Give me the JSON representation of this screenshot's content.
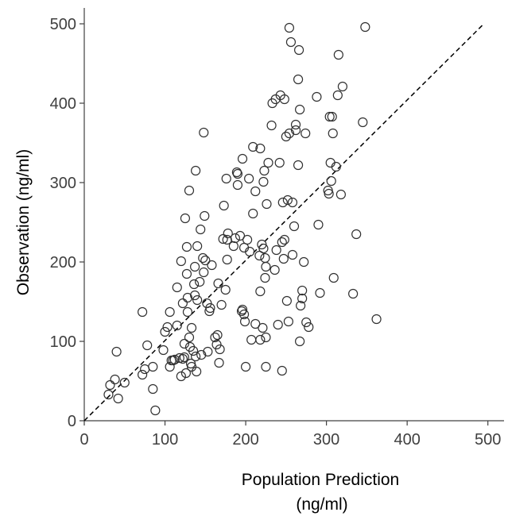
{
  "chart_data": {
    "type": "scatter",
    "xlabel_line1": "Population Prediction",
    "xlabel_line2": "(ng/ml)",
    "ylabel": "Observation (ng/ml)",
    "xlim": [
      0,
      520
    ],
    "ylim": [
      0,
      520
    ],
    "xticks": [
      0,
      100,
      200,
      300,
      400,
      500
    ],
    "yticks": [
      0,
      100,
      200,
      300,
      400,
      500
    ],
    "xtick_labels": [
      "0",
      "100",
      "200",
      "300",
      "400",
      "500"
    ],
    "ytick_labels": [
      "0",
      "100",
      "200",
      "300",
      "400",
      "500"
    ],
    "grid": false,
    "identity_line": {
      "style": "dashed",
      "from": [
        0,
        0
      ],
      "to": [
        495,
        500
      ]
    },
    "series": [
      {
        "marker": "open-circle",
        "color": "#303030",
        "points": [
          [
            30,
            33
          ],
          [
            32,
            45
          ],
          [
            38,
            52
          ],
          [
            42,
            28
          ],
          [
            40,
            87
          ],
          [
            50,
            48
          ],
          [
            72,
            58
          ],
          [
            75,
            65
          ],
          [
            72,
            137
          ],
          [
            78,
            95
          ],
          [
            85,
            40
          ],
          [
            85,
            68
          ],
          [
            88,
            13
          ],
          [
            98,
            89
          ],
          [
            100,
            112
          ],
          [
            103,
            118
          ],
          [
            106,
            68
          ],
          [
            106,
            137
          ],
          [
            108,
            76
          ],
          [
            110,
            76
          ],
          [
            112,
            77
          ],
          [
            115,
            120
          ],
          [
            115,
            168
          ],
          [
            118,
            79
          ],
          [
            120,
            56
          ],
          [
            122,
            78
          ],
          [
            124,
            80
          ],
          [
            126,
            60
          ],
          [
            124,
            97
          ],
          [
            120,
            201
          ],
          [
            122,
            148
          ],
          [
            125,
            255
          ],
          [
            127,
            219
          ],
          [
            127,
            185
          ],
          [
            128,
            155
          ],
          [
            128,
            137
          ],
          [
            130,
            290
          ],
          [
            130,
            105
          ],
          [
            131,
            93
          ],
          [
            132,
            72
          ],
          [
            133,
            68
          ],
          [
            133,
            117
          ],
          [
            135,
            88
          ],
          [
            137,
            158
          ],
          [
            136,
            172
          ],
          [
            137,
            194
          ],
          [
            138,
            81
          ],
          [
            139,
            62
          ],
          [
            138,
            315
          ],
          [
            140,
            220
          ],
          [
            140,
            152
          ],
          [
            143,
            175
          ],
          [
            145,
            83
          ],
          [
            144,
            241
          ],
          [
            147,
            205
          ],
          [
            148,
            363
          ],
          [
            148,
            187
          ],
          [
            149,
            258
          ],
          [
            150,
            202
          ],
          [
            152,
            148
          ],
          [
            153,
            87
          ],
          [
            155,
            138
          ],
          [
            156,
            142
          ],
          [
            158,
            196
          ],
          [
            162,
            105
          ],
          [
            165,
            108
          ],
          [
            164,
            96
          ],
          [
            168,
            90
          ],
          [
            166,
            173
          ],
          [
            167,
            73
          ],
          [
            170,
            146
          ],
          [
            172,
            229
          ],
          [
            173,
            271
          ],
          [
            175,
            165
          ],
          [
            177,
            203
          ],
          [
            177,
            228
          ],
          [
            178,
            236
          ],
          [
            176,
            305
          ],
          [
            185,
            220
          ],
          [
            187,
            230
          ],
          [
            189,
            313
          ],
          [
            190,
            297
          ],
          [
            190,
            311
          ],
          [
            193,
            233
          ],
          [
            195,
            138
          ],
          [
            196,
            140
          ],
          [
            196,
            330
          ],
          [
            198,
            134
          ],
          [
            199,
            125
          ],
          [
            198,
            218
          ],
          [
            200,
            68
          ],
          [
            202,
            228
          ],
          [
            204,
            305
          ],
          [
            205,
            213
          ],
          [
            207,
            102
          ],
          [
            209,
            345
          ],
          [
            209,
            261
          ],
          [
            212,
            122
          ],
          [
            212,
            289
          ],
          [
            217,
            208
          ],
          [
            218,
            102
          ],
          [
            218,
            163
          ],
          [
            218,
            343
          ],
          [
            220,
            222
          ],
          [
            221,
            117
          ],
          [
            222,
            217
          ],
          [
            222,
            301
          ],
          [
            223,
            315
          ],
          [
            224,
            180
          ],
          [
            225,
            105
          ],
          [
            224,
            205
          ],
          [
            225,
            194
          ],
          [
            225,
            68
          ],
          [
            226,
            273
          ],
          [
            228,
            325
          ],
          [
            232,
            372
          ],
          [
            233,
            400
          ],
          [
            236,
            190
          ],
          [
            237,
            405
          ],
          [
            238,
            215
          ],
          [
            240,
            121
          ],
          [
            242,
            325
          ],
          [
            243,
            410
          ],
          [
            245,
            63
          ],
          [
            245,
            225
          ],
          [
            246,
            275
          ],
          [
            247,
            204
          ],
          [
            248,
            405
          ],
          [
            248,
            228
          ],
          [
            250,
            358
          ],
          [
            251,
            151
          ],
          [
            252,
            278
          ],
          [
            253,
            125
          ],
          [
            254,
            362
          ],
          [
            254,
            495
          ],
          [
            256,
            477
          ],
          [
            258,
            209
          ],
          [
            258,
            275
          ],
          [
            260,
            245
          ],
          [
            262,
            366
          ],
          [
            262,
            373
          ],
          [
            265,
            322
          ],
          [
            266,
            467
          ],
          [
            265,
            430
          ],
          [
            267,
            100
          ],
          [
            267,
            392
          ],
          [
            268,
            145
          ],
          [
            270,
            154
          ],
          [
            270,
            164
          ],
          [
            272,
            200
          ],
          [
            274,
            362
          ],
          [
            275,
            124
          ],
          [
            278,
            118
          ],
          [
            288,
            408
          ],
          [
            290,
            247
          ],
          [
            292,
            161
          ],
          [
            302,
            290
          ],
          [
            303,
            286
          ],
          [
            304,
            383
          ],
          [
            305,
            325
          ],
          [
            306,
            302
          ],
          [
            307,
            383
          ],
          [
            308,
            362
          ],
          [
            309,
            180
          ],
          [
            312,
            320
          ],
          [
            314,
            410
          ],
          [
            315,
            461
          ],
          [
            318,
            285
          ],
          [
            320,
            421
          ],
          [
            333,
            160
          ],
          [
            337,
            235
          ],
          [
            345,
            376
          ],
          [
            348,
            496
          ],
          [
            362,
            128
          ]
        ]
      }
    ]
  }
}
